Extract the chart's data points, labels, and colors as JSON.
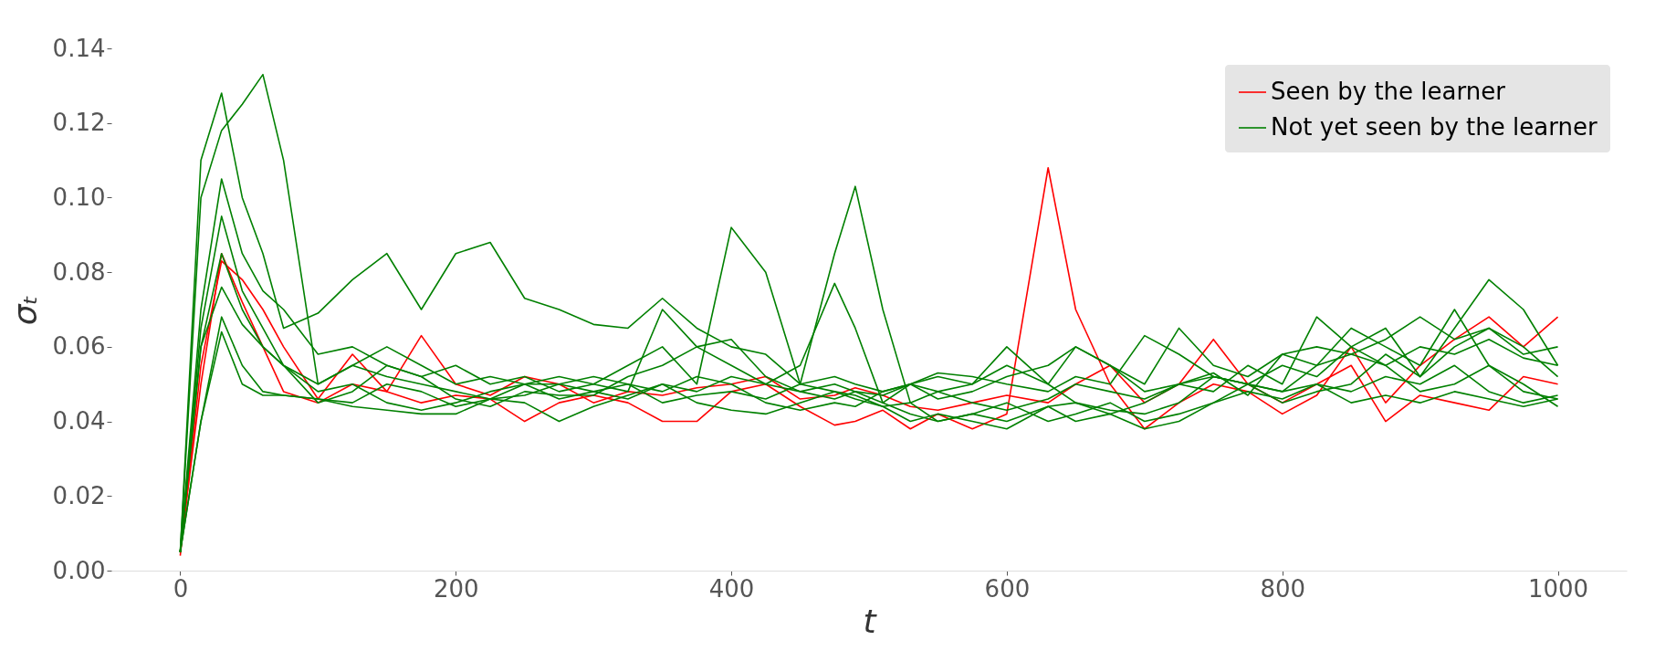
{
  "chart_data": {
    "type": "line",
    "xlabel": "t",
    "ylabel": "σₜ",
    "legend": "top right",
    "grid": false,
    "x": [
      0,
      15,
      30,
      45,
      60,
      75,
      100,
      125,
      150,
      175,
      200,
      225,
      250,
      275,
      300,
      325,
      350,
      375,
      400,
      425,
      450,
      475,
      490,
      510,
      530,
      550,
      575,
      600,
      630,
      650,
      675,
      700,
      725,
      750,
      775,
      800,
      825,
      850,
      875,
      900,
      925,
      950,
      975,
      1000
    ],
    "xlim": [
      -50,
      1050
    ],
    "xticks": [
      0,
      200,
      400,
      600,
      800,
      1000
    ],
    "ylim": [
      0,
      0.14
    ],
    "yticks": [
      {
        "value": 0,
        "label": "0.00"
      },
      {
        "value": 0.02,
        "label": "0.02"
      },
      {
        "value": 0.04,
        "label": "0.04"
      },
      {
        "value": 0.06,
        "label": "0.06"
      },
      {
        "value": 0.08,
        "label": "0.08"
      },
      {
        "value": 0.1,
        "label": "0.10"
      },
      {
        "value": 0.12,
        "label": "0.12"
      },
      {
        "value": 0.14,
        "label": "0.14"
      }
    ],
    "series": [
      {
        "name": "Seen by the learner",
        "color": "#ff0000",
        "values": [
          0.005,
          0.05,
          0.085,
          0.072,
          0.06,
          0.048,
          0.045,
          0.05,
          0.048,
          0.045,
          0.047,
          0.046,
          0.04,
          0.045,
          0.047,
          0.045,
          0.04,
          0.04,
          0.048,
          0.05,
          0.044,
          0.039,
          0.04,
          0.043,
          0.038,
          0.042,
          0.038,
          0.042,
          0.108,
          0.07,
          0.05,
          0.038,
          0.045,
          0.05,
          0.048,
          0.042,
          0.047,
          0.06,
          0.045,
          0.055,
          0.062,
          0.068,
          0.06,
          0.068
        ]
      },
      {
        "color": "#ff0000",
        "values": [
          0.004,
          0.055,
          0.083,
          0.078,
          0.07,
          0.06,
          0.046,
          0.058,
          0.048,
          0.063,
          0.05,
          0.047,
          0.052,
          0.05,
          0.045,
          0.048,
          0.047,
          0.049,
          0.05,
          0.052,
          0.046,
          0.047,
          0.049,
          0.047,
          0.044,
          0.043,
          0.045,
          0.047,
          0.045,
          0.05,
          0.055,
          0.045,
          0.05,
          0.062,
          0.05,
          0.045,
          0.05,
          0.055,
          0.04,
          0.047,
          0.045,
          0.043,
          0.052,
          0.05
        ]
      },
      {
        "name": "Not yet seen by the learner",
        "color": "#008000",
        "values": [
          0.005,
          0.1,
          0.118,
          0.125,
          0.133,
          0.11,
          0.05,
          0.055,
          0.052,
          0.05,
          0.048,
          0.046,
          0.047,
          0.05,
          0.048,
          0.046,
          0.05,
          0.048,
          0.052,
          0.05,
          0.048,
          0.046,
          0.048,
          0.045,
          0.05,
          0.048,
          0.045,
          0.043,
          0.046,
          0.05,
          0.048,
          0.046,
          0.05,
          0.052,
          0.05,
          0.048,
          0.055,
          0.058,
          0.055,
          0.06,
          0.058,
          0.062,
          0.057,
          0.055
        ]
      },
      {
        "color": "#008000",
        "values": [
          0.005,
          0.11,
          0.128,
          0.1,
          0.085,
          0.065,
          0.069,
          0.078,
          0.085,
          0.07,
          0.085,
          0.088,
          0.073,
          0.07,
          0.066,
          0.065,
          0.073,
          0.065,
          0.06,
          0.058,
          0.05,
          0.052,
          0.05,
          0.048,
          0.05,
          0.053,
          0.052,
          0.05,
          0.048,
          0.052,
          0.05,
          0.063,
          0.058,
          0.052,
          0.05,
          0.055,
          0.052,
          0.06,
          0.055,
          0.048,
          0.05,
          0.055,
          0.048,
          0.046
        ]
      },
      {
        "color": "#008000",
        "values": [
          0.005,
          0.07,
          0.105,
          0.085,
          0.075,
          0.07,
          0.058,
          0.06,
          0.055,
          0.052,
          0.055,
          0.05,
          0.052,
          0.048,
          0.05,
          0.055,
          0.06,
          0.05,
          0.092,
          0.08,
          0.05,
          0.048,
          0.046,
          0.044,
          0.045,
          0.048,
          0.05,
          0.055,
          0.05,
          0.06,
          0.055,
          0.048,
          0.05,
          0.048,
          0.055,
          0.05,
          0.068,
          0.06,
          0.065,
          0.052,
          0.06,
          0.065,
          0.058,
          0.06
        ]
      },
      {
        "color": "#008000",
        "values": [
          0.005,
          0.065,
          0.095,
          0.075,
          0.065,
          0.055,
          0.05,
          0.055,
          0.06,
          0.055,
          0.05,
          0.052,
          0.05,
          0.046,
          0.048,
          0.05,
          0.045,
          0.047,
          0.048,
          0.046,
          0.05,
          0.085,
          0.103,
          0.07,
          0.045,
          0.04,
          0.042,
          0.045,
          0.04,
          0.042,
          0.045,
          0.04,
          0.042,
          0.045,
          0.048,
          0.046,
          0.05,
          0.048,
          0.052,
          0.05,
          0.055,
          0.048,
          0.045,
          0.047
        ]
      },
      {
        "color": "#008000",
        "values": [
          0.005,
          0.06,
          0.085,
          0.07,
          0.06,
          0.055,
          0.048,
          0.05,
          0.045,
          0.043,
          0.045,
          0.048,
          0.05,
          0.052,
          0.05,
          0.048,
          0.07,
          0.06,
          0.055,
          0.05,
          0.055,
          0.077,
          0.065,
          0.045,
          0.042,
          0.04,
          0.042,
          0.04,
          0.044,
          0.045,
          0.043,
          0.042,
          0.045,
          0.052,
          0.05,
          0.045,
          0.048,
          0.05,
          0.058,
          0.052,
          0.065,
          0.078,
          0.07,
          0.055
        ]
      },
      {
        "color": "#008000",
        "values": [
          0.005,
          0.04,
          0.068,
          0.055,
          0.048,
          0.047,
          0.046,
          0.045,
          0.05,
          0.048,
          0.044,
          0.046,
          0.05,
          0.05,
          0.052,
          0.05,
          0.048,
          0.052,
          0.05,
          0.045,
          0.043,
          0.045,
          0.044,
          0.048,
          0.05,
          0.052,
          0.05,
          0.06,
          0.05,
          0.045,
          0.042,
          0.045,
          0.05,
          0.053,
          0.047,
          0.058,
          0.06,
          0.058,
          0.062,
          0.068,
          0.062,
          0.065,
          0.06,
          0.052
        ]
      },
      {
        "color": "#008000",
        "values": [
          0.005,
          0.04,
          0.064,
          0.05,
          0.047,
          0.047,
          0.046,
          0.044,
          0.043,
          0.042,
          0.042,
          0.046,
          0.045,
          0.04,
          0.044,
          0.047,
          0.05,
          0.045,
          0.043,
          0.042,
          0.045,
          0.048,
          0.047,
          0.044,
          0.04,
          0.042,
          0.04,
          0.038,
          0.044,
          0.04,
          0.042,
          0.038,
          0.04,
          0.045,
          0.05,
          0.048,
          0.05,
          0.045,
          0.047,
          0.045,
          0.048,
          0.046,
          0.044,
          0.046
        ]
      },
      {
        "color": "#008000",
        "values": [
          0.005,
          0.06,
          0.076,
          0.066,
          0.06,
          0.055,
          0.045,
          0.048,
          0.055,
          0.052,
          0.046,
          0.044,
          0.048,
          0.047,
          0.047,
          0.052,
          0.055,
          0.06,
          0.062,
          0.052,
          0.048,
          0.05,
          0.048,
          0.047,
          0.05,
          0.046,
          0.048,
          0.052,
          0.055,
          0.06,
          0.055,
          0.05,
          0.065,
          0.055,
          0.052,
          0.058,
          0.055,
          0.065,
          0.06,
          0.055,
          0.07,
          0.055,
          0.05,
          0.044
        ]
      }
    ]
  }
}
